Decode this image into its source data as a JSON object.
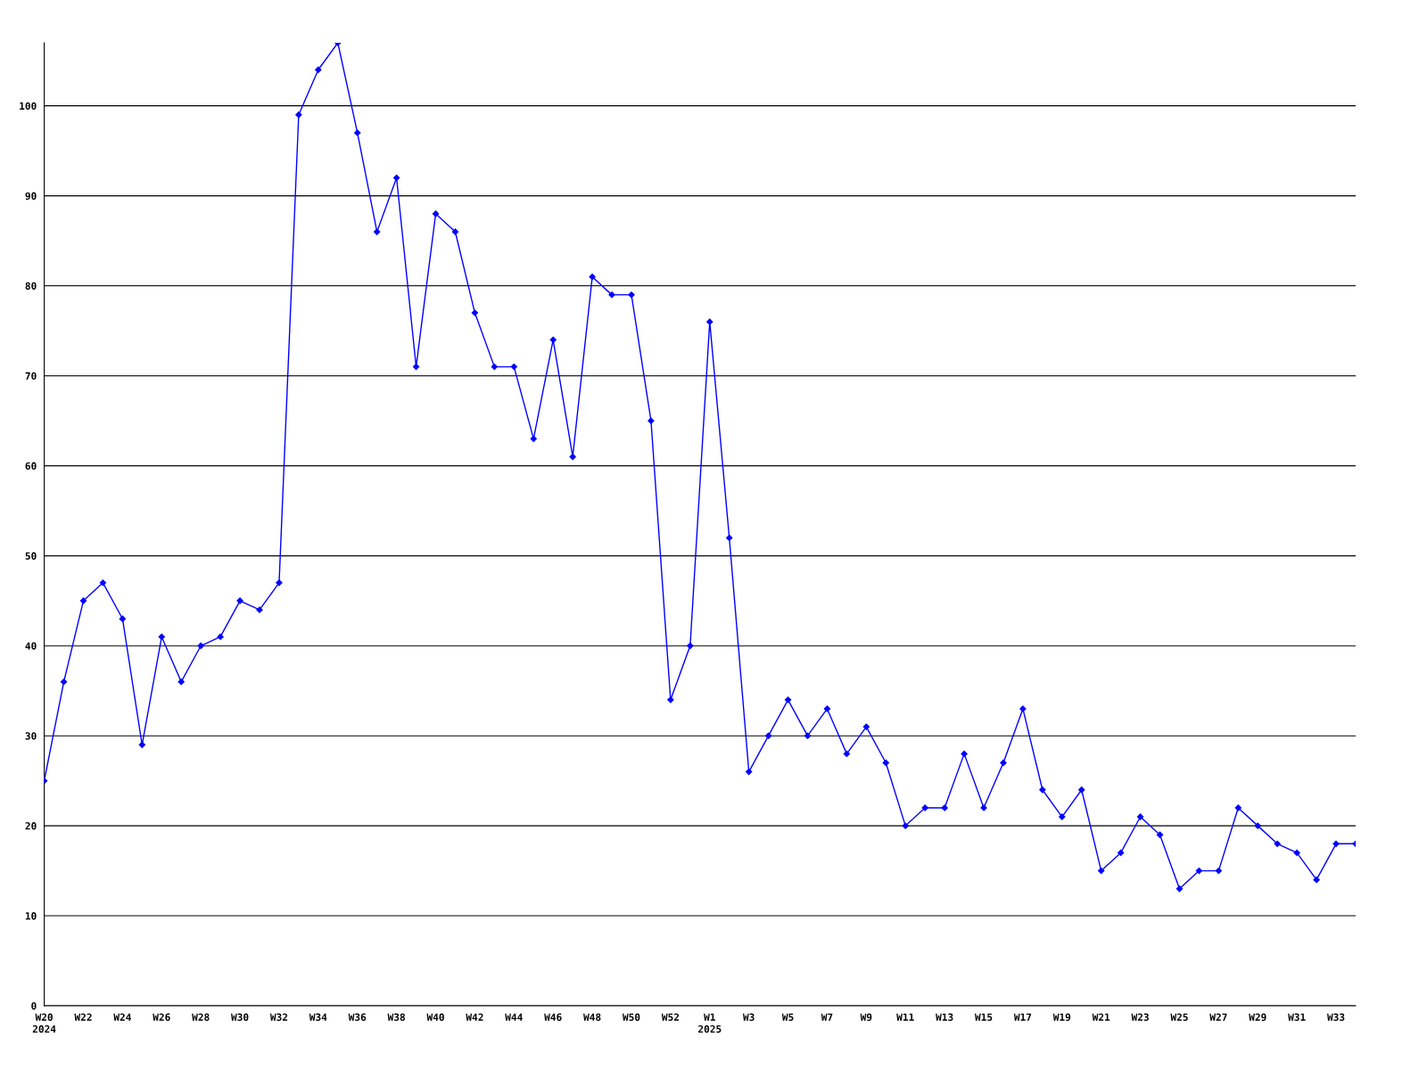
{
  "chart_data": {
    "type": "line",
    "categories": [
      "W20\n2024",
      null,
      "W22",
      null,
      "W24",
      null,
      "W26",
      null,
      "W28",
      null,
      "W30",
      null,
      "W32",
      null,
      "W34",
      null,
      "W36",
      null,
      "W38",
      null,
      "W40",
      null,
      "W42",
      null,
      "W44",
      null,
      "W46",
      null,
      "W48",
      null,
      "W50",
      null,
      "W52",
      null,
      "W1\n2025",
      null,
      "W3",
      null,
      "W5",
      null,
      "W7",
      null,
      "W9",
      null,
      "W11",
      null,
      "W13",
      null,
      "W15",
      null,
      "W17",
      null,
      "W19",
      null,
      "W21",
      null,
      "W23",
      null,
      "W25",
      null,
      "W27",
      null,
      "W29",
      null,
      "W31",
      null,
      "W33",
      null
    ],
    "series": [
      {
        "color": "#0000ff",
        "values": [
          25,
          36,
          45,
          47,
          43,
          29,
          41,
          36,
          40,
          41,
          45,
          44,
          47,
          99,
          104,
          107,
          97,
          86,
          92,
          71,
          88,
          86,
          77,
          71,
          71,
          63,
          74,
          61,
          81,
          79,
          79,
          65,
          34,
          40,
          76,
          52,
          26,
          30,
          34,
          30,
          33,
          28,
          31,
          27,
          20,
          22,
          22,
          28,
          22,
          27,
          33,
          24,
          21,
          24,
          15,
          17,
          21,
          19,
          13,
          15,
          15,
          22,
          20,
          18,
          17,
          14,
          18,
          18
        ]
      }
    ],
    "ylim": [
      0,
      107
    ],
    "yticks": [
      0,
      10,
      20,
      30,
      40,
      50,
      60,
      70,
      80,
      90,
      100
    ],
    "grid": "y",
    "marker": "diamond",
    "line_style": "solid",
    "legend": false
  }
}
